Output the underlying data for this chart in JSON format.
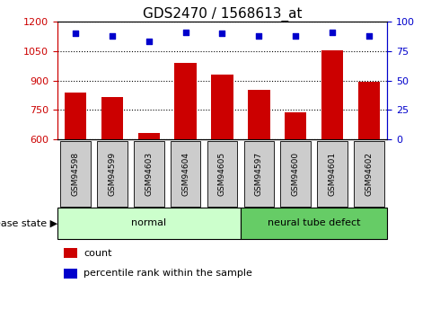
{
  "title": "GDS2470 / 1568613_at",
  "samples": [
    "GSM94598",
    "GSM94599",
    "GSM94603",
    "GSM94604",
    "GSM94605",
    "GSM94597",
    "GSM94600",
    "GSM94601",
    "GSM94602"
  ],
  "counts": [
    840,
    815,
    635,
    990,
    930,
    855,
    740,
    1055,
    895
  ],
  "percentiles": [
    90,
    88,
    83,
    91,
    90,
    88,
    88,
    91,
    88
  ],
  "groups": [
    {
      "label": "normal",
      "start": 0,
      "end": 5,
      "color": "#ccffcc"
    },
    {
      "label": "neural tube defect",
      "start": 5,
      "end": 9,
      "color": "#66cc66"
    }
  ],
  "ylim_left": [
    600,
    1200
  ],
  "ylim_right": [
    0,
    100
  ],
  "yticks_left": [
    600,
    750,
    900,
    1050,
    1200
  ],
  "yticks_right": [
    0,
    25,
    50,
    75,
    100
  ],
  "bar_color": "#cc0000",
  "dot_color": "#0000cc",
  "title_fontsize": 11,
  "label_fontsize": 8,
  "tick_fontsize": 8,
  "left_tick_color": "#cc0000",
  "right_tick_color": "#0000cc",
  "disease_state_text": "disease state",
  "legend_items": [
    {
      "label": "count",
      "color": "#cc0000"
    },
    {
      "label": "percentile rank within the sample",
      "color": "#0000cc"
    }
  ],
  "bar_width": 0.6,
  "sample_box_color": "#cccccc",
  "sample_box_edge": "#888888"
}
